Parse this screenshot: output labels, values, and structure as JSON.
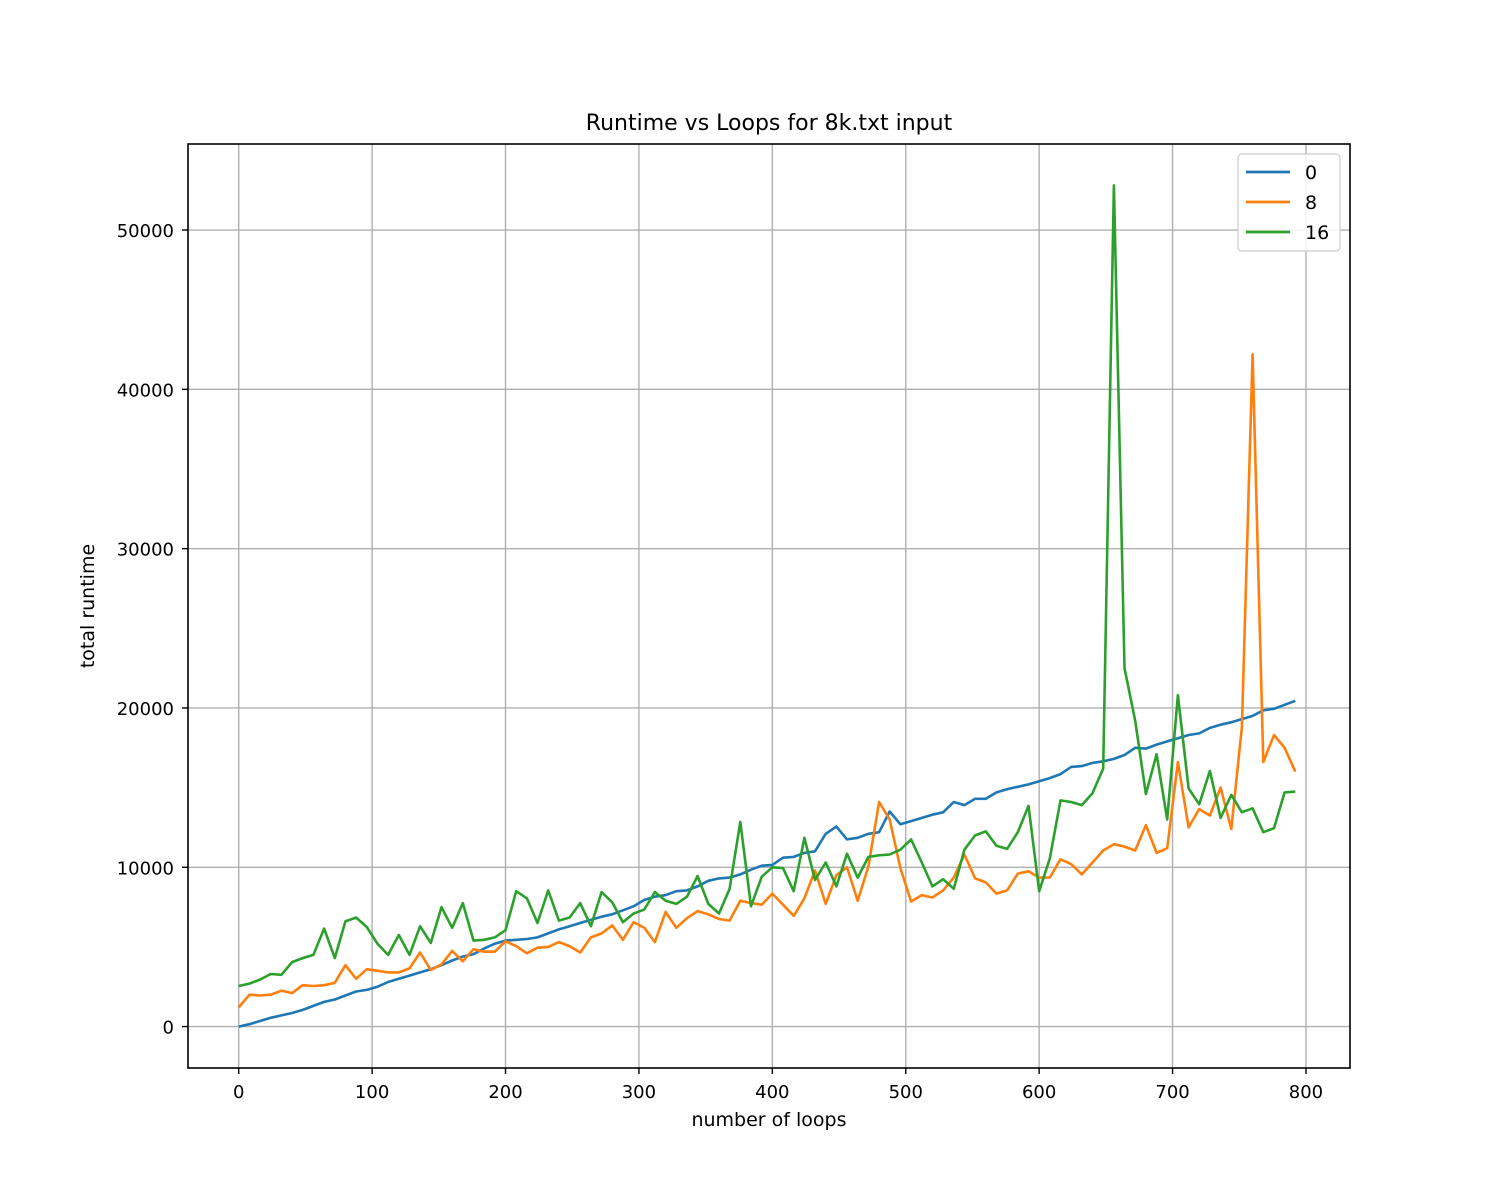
{
  "chart_data": {
    "type": "line",
    "title": "Runtime vs Loops for 8k.txt input",
    "xlabel": "number of loops",
    "ylabel": "total runtime",
    "xlim": [
      -38,
      833
    ],
    "ylim": [
      -2600,
      55400
    ],
    "xticks": [
      0,
      100,
      200,
      300,
      400,
      500,
      600,
      700,
      800
    ],
    "yticks": [
      0,
      10000,
      20000,
      30000,
      40000,
      50000
    ],
    "grid": true,
    "legend_position": "top-right",
    "x": [
      0,
      8,
      16,
      24,
      32,
      40,
      48,
      56,
      64,
      72,
      80,
      88,
      96,
      104,
      112,
      120,
      128,
      136,
      144,
      152,
      160,
      168,
      176,
      184,
      192,
      200,
      208,
      216,
      224,
      232,
      240,
      248,
      256,
      264,
      272,
      280,
      288,
      296,
      304,
      312,
      320,
      328,
      336,
      344,
      352,
      360,
      368,
      376,
      384,
      392,
      400,
      408,
      416,
      424,
      432,
      440,
      448,
      456,
      464,
      472,
      480,
      488,
      496,
      504,
      512,
      520,
      528,
      536,
      544,
      552,
      560,
      568,
      576,
      584,
      592,
      600,
      608,
      616,
      624,
      632,
      640,
      648,
      656,
      664,
      672,
      680,
      688,
      696,
      704,
      712,
      720,
      728,
      736,
      744,
      752,
      760,
      768,
      776,
      784,
      792
    ],
    "series": [
      {
        "name": "0",
        "color": "#1f77b4",
        "values": [
          0,
          150,
          350,
          550,
          700,
          850,
          1050,
          1300,
          1550,
          1700,
          1950,
          2200,
          2300,
          2500,
          2800,
          3000,
          3200,
          3400,
          3600,
          3850,
          4150,
          4400,
          4550,
          4900,
          5200,
          5400,
          5450,
          5500,
          5600,
          5850,
          6100,
          6300,
          6500,
          6700,
          6900,
          7050,
          7300,
          7550,
          7950,
          8150,
          8250,
          8500,
          8550,
          8800,
          9150,
          9300,
          9350,
          9550,
          9850,
          10100,
          10150,
          10600,
          10650,
          10900,
          11000,
          12100,
          12550,
          11750,
          11850,
          12100,
          12200,
          13500,
          12700,
          12900,
          13100,
          13300,
          13450,
          14100,
          13900,
          14300,
          14300,
          14700,
          14900,
          15050,
          15200,
          15400,
          15600,
          15850,
          16300,
          16350,
          16550,
          16650,
          16800,
          17050,
          17500,
          17450,
          17700,
          17900,
          18100,
          18300,
          18400,
          18750,
          18950,
          19100,
          19300,
          19500,
          19850,
          19950,
          20200,
          20450
        ]
      },
      {
        "name": "8",
        "color": "#ff7f0e",
        "values": [
          1200,
          2000,
          1950,
          2000,
          2250,
          2100,
          2600,
          2550,
          2600,
          2750,
          3850,
          3000,
          3600,
          3500,
          3400,
          3400,
          3650,
          4650,
          3550,
          3900,
          4750,
          4100,
          4850,
          4700,
          4700,
          5350,
          5050,
          4600,
          4950,
          5000,
          5300,
          5050,
          4650,
          5600,
          5850,
          6350,
          5450,
          6550,
          6200,
          5300,
          7200,
          6200,
          6800,
          7250,
          7050,
          6750,
          6650,
          7900,
          7750,
          7650,
          8350,
          7650,
          6950,
          8050,
          9800,
          7700,
          9500,
          10000,
          7900,
          10050,
          14100,
          13000,
          9950,
          7850,
          8250,
          8100,
          8550,
          9350,
          10800,
          9300,
          9050,
          8350,
          8550,
          9600,
          9750,
          9350,
          9350,
          10500,
          10200,
          9550,
          10300,
          11050,
          11450,
          11300,
          11050,
          12650,
          10900,
          11200,
          16600,
          12500,
          13650,
          13250,
          15000,
          12400,
          18800,
          42200,
          16600,
          18300,
          17500,
          16000
        ]
      },
      {
        "name": "16",
        "color": "#2ca02c",
        "values": [
          2550,
          2700,
          2950,
          3300,
          3250,
          4050,
          4300,
          4500,
          6150,
          4300,
          6600,
          6850,
          6250,
          5200,
          4500,
          5750,
          4500,
          6300,
          5250,
          7500,
          6200,
          7750,
          5400,
          5450,
          5600,
          6050,
          8500,
          8050,
          6500,
          8550,
          6650,
          6850,
          7750,
          6300,
          8450,
          7800,
          6550,
          7100,
          7350,
          8450,
          7900,
          7700,
          8150,
          9450,
          7700,
          7100,
          8650,
          12850,
          7550,
          9400,
          10000,
          9950,
          8500,
          11850,
          9200,
          10300,
          8800,
          10850,
          9350,
          10650,
          10750,
          10800,
          11100,
          11750,
          10300,
          8800,
          9250,
          8650,
          11100,
          12000,
          12250,
          11350,
          11150,
          12200,
          13850,
          8500,
          10550,
          14200,
          14100,
          13900,
          14650,
          16200,
          52800,
          22500,
          19200,
          14600,
          17100,
          13000,
          20800,
          14950,
          13950,
          16050,
          13100,
          14550,
          13450,
          13700,
          12200,
          12450,
          14700,
          14750
        ]
      }
    ]
  }
}
